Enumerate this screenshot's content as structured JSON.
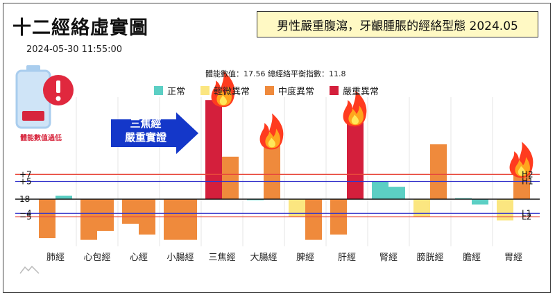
{
  "title": "十二經絡虛實圖",
  "timestamp": "2024-05-30 11:55:00",
  "notice": "男性嚴重腹瀉，牙齦腫脹的經絡型態 2024.05",
  "stats": "體能數值：17.56 總經絡平衡指數：11.8",
  "battery_label": "體能數值過低",
  "arrow_text": [
    "三焦經",
    "嚴重實證"
  ],
  "colors": {
    "正常": "#5ccfc4",
    "輕微異常": "#fbe680",
    "中度異常": "#ef8a3c",
    "嚴重異常": "#d41f3c",
    "line_h1": "#3333cc",
    "line_h2": "#e8483b",
    "arrow": "#1437c9"
  },
  "chart_data": {
    "type": "bar",
    "categories": [
      "肺經",
      "心包經",
      "心經",
      "小腸經",
      "三焦經",
      "大腸經",
      "脾經",
      "肝經",
      "腎經",
      "膀胱經",
      "膽經",
      "胃經"
    ],
    "baseline": 18,
    "legend": [
      {
        "name": "正常",
        "color": "#5ccfc4"
      },
      {
        "name": "輕微異常",
        "color": "#fbe680"
      },
      {
        "name": "中度異常",
        "color": "#ef8a3c"
      },
      {
        "name": "嚴重異常",
        "color": "#d41f3c"
      }
    ],
    "groups": [
      {
        "category": "肺經",
        "bars": [
          {
            "value": -11,
            "level": "中度異常"
          },
          {
            "value": 1,
            "level": "正常"
          }
        ]
      },
      {
        "category": "心包經",
        "bars": [
          {
            "value": -11.5,
            "level": "中度異常"
          },
          {
            "value": -9,
            "level": "中度異常"
          }
        ]
      },
      {
        "category": "心經",
        "bars": [
          {
            "value": -7,
            "level": "中度異常"
          },
          {
            "value": -10,
            "level": "中度異常"
          }
        ]
      },
      {
        "category": "小腸經",
        "bars": [
          {
            "value": -11.5,
            "level": "中度異常"
          },
          {
            "value": -11.5,
            "level": "中度異常"
          }
        ]
      },
      {
        "category": "三焦經",
        "bars": [
          {
            "value": 28,
            "level": "嚴重異常",
            "flame": true
          },
          {
            "value": 12,
            "level": "中度異常"
          }
        ]
      },
      {
        "category": "大腸經",
        "bars": [
          {
            "value": 0,
            "level": "正常"
          },
          {
            "value": 16,
            "level": "中度異常",
            "flame": true
          }
        ]
      },
      {
        "category": "脾經",
        "bars": [
          {
            "value": -5,
            "level": "輕微異常"
          },
          {
            "value": -11.5,
            "level": "中度異常"
          }
        ]
      },
      {
        "category": "肝經",
        "bars": [
          {
            "value": -10,
            "level": "中度異常"
          },
          {
            "value": 22.5,
            "level": "嚴重異常",
            "flame": true
          }
        ]
      },
      {
        "category": "腎經",
        "bars": [
          {
            "value": 5,
            "level": "正常"
          },
          {
            "value": 3.5,
            "level": "正常"
          }
        ]
      },
      {
        "category": "膀胱經",
        "bars": [
          {
            "value": -5,
            "level": "輕微異常"
          },
          {
            "value": 15.5,
            "level": "中度異常"
          }
        ]
      },
      {
        "category": "膽經",
        "bars": [
          {
            "value": 0.3,
            "level": "正常"
          },
          {
            "value": -1.5,
            "level": "正常"
          }
        ]
      },
      {
        "category": "胃經",
        "bars": [
          {
            "value": -6,
            "level": "輕微異常"
          },
          {
            "value": 8,
            "level": "中度異常",
            "flame": true
          }
        ]
      }
    ],
    "reference_lines": [
      {
        "value": 7,
        "left_label": "+7",
        "right_label": "H2",
        "color": "#e8483b"
      },
      {
        "value": 5,
        "left_label": "+5",
        "right_label": "H1",
        "color": "#3333cc"
      },
      {
        "value": 0,
        "left_label": "18",
        "right_label": "",
        "color": "#111111"
      },
      {
        "value": -4,
        "left_label": "−4",
        "right_label": "L1",
        "color": "#3333cc"
      },
      {
        "value": -5,
        "left_label": "−5",
        "right_label": "L2",
        "color": "#e8483b"
      }
    ],
    "ylim": [
      -14,
      28
    ],
    "grid": "vertical"
  }
}
